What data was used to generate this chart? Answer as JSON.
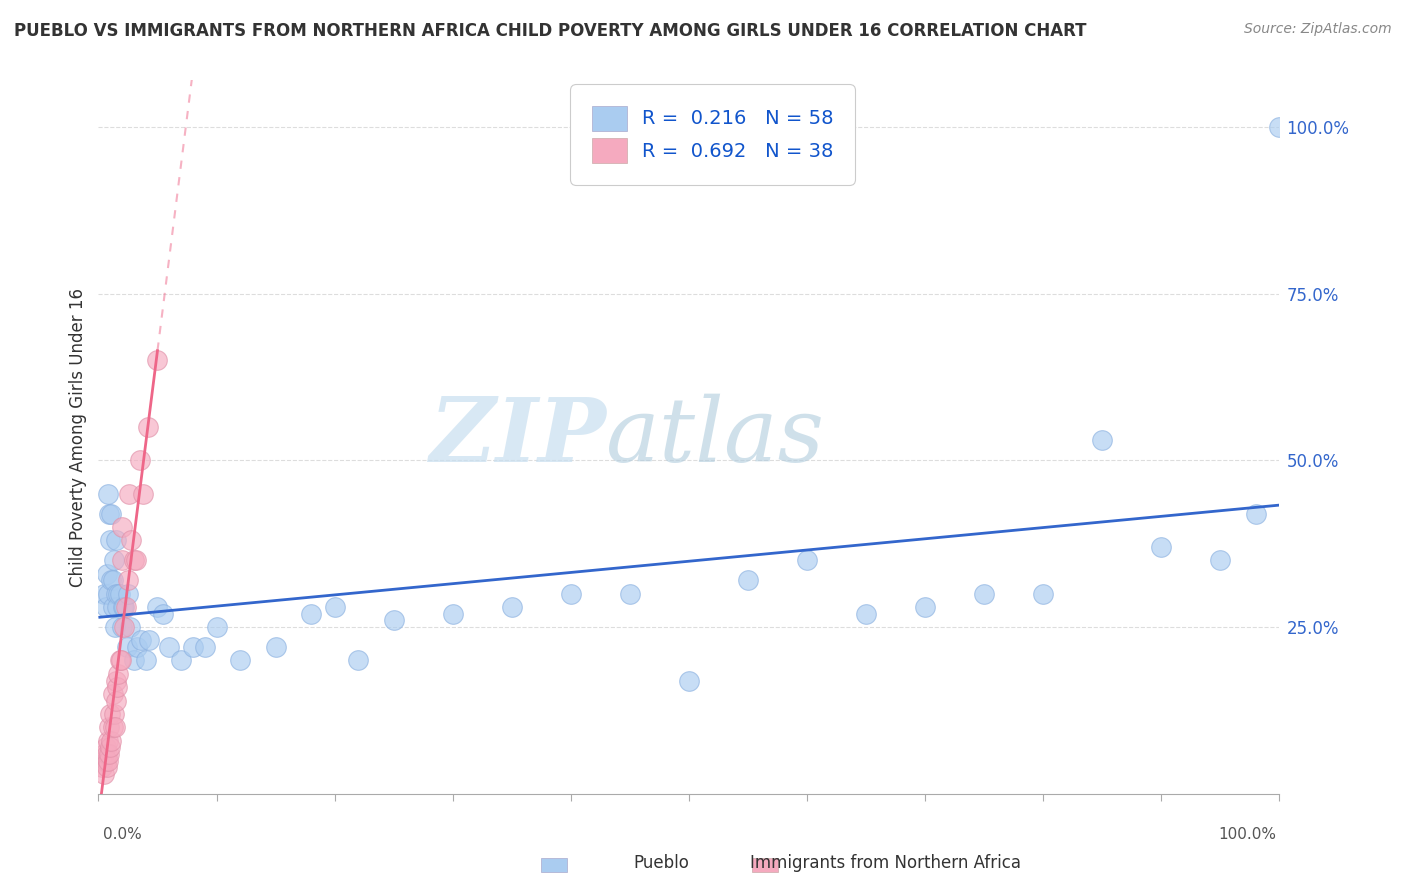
{
  "title": "PUEBLO VS IMMIGRANTS FROM NORTHERN AFRICA CHILD POVERTY AMONG GIRLS UNDER 16 CORRELATION CHART",
  "source": "Source: ZipAtlas.com",
  "ylabel": "Child Poverty Among Girls Under 16",
  "pueblo_r": "0.216",
  "pueblo_n": "58",
  "immig_r": "0.692",
  "immig_n": "38",
  "pueblo_color": "#aaccf0",
  "immig_color": "#f5aabf",
  "trend_pueblo_color": "#3366cc",
  "trend_immig_color": "#ee6688",
  "watermark_zip": "#c8dff0",
  "watermark_atlas": "#b0cce0",
  "bg": "#ffffff",
  "pueblo_points_x": [
    0.005,
    0.006,
    0.007,
    0.008,
    0.008,
    0.009,
    0.01,
    0.011,
    0.011,
    0.012,
    0.012,
    0.013,
    0.014,
    0.015,
    0.015,
    0.016,
    0.017,
    0.018,
    0.02,
    0.021,
    0.022,
    0.024,
    0.025,
    0.027,
    0.03,
    0.033,
    0.036,
    0.04,
    0.043,
    0.05,
    0.055,
    0.06,
    0.07,
    0.08,
    0.09,
    0.1,
    0.12,
    0.15,
    0.18,
    0.2,
    0.22,
    0.25,
    0.3,
    0.35,
    0.4,
    0.45,
    0.5,
    0.55,
    0.6,
    0.65,
    0.7,
    0.75,
    0.8,
    0.85,
    0.9,
    0.95,
    0.98,
    1.0
  ],
  "pueblo_points_y": [
    0.3,
    0.28,
    0.33,
    0.3,
    0.45,
    0.42,
    0.38,
    0.32,
    0.42,
    0.28,
    0.32,
    0.35,
    0.25,
    0.3,
    0.38,
    0.28,
    0.3,
    0.3,
    0.25,
    0.28,
    0.28,
    0.22,
    0.3,
    0.25,
    0.2,
    0.22,
    0.23,
    0.2,
    0.23,
    0.28,
    0.27,
    0.22,
    0.2,
    0.22,
    0.22,
    0.25,
    0.2,
    0.22,
    0.27,
    0.28,
    0.2,
    0.26,
    0.27,
    0.28,
    0.3,
    0.3,
    0.17,
    0.32,
    0.35,
    0.27,
    0.28,
    0.3,
    0.3,
    0.53,
    0.37,
    0.35,
    0.42,
    1.0
  ],
  "immig_points_x": [
    0.003,
    0.004,
    0.005,
    0.005,
    0.006,
    0.006,
    0.007,
    0.007,
    0.008,
    0.008,
    0.009,
    0.009,
    0.01,
    0.01,
    0.011,
    0.012,
    0.012,
    0.013,
    0.014,
    0.015,
    0.015,
    0.016,
    0.017,
    0.018,
    0.019,
    0.02,
    0.02,
    0.022,
    0.023,
    0.025,
    0.026,
    0.028,
    0.03,
    0.032,
    0.035,
    0.038,
    0.042,
    0.05
  ],
  "immig_points_y": [
    0.04,
    0.05,
    0.03,
    0.06,
    0.05,
    0.07,
    0.04,
    0.06,
    0.05,
    0.08,
    0.06,
    0.1,
    0.07,
    0.12,
    0.08,
    0.1,
    0.15,
    0.12,
    0.1,
    0.14,
    0.17,
    0.16,
    0.18,
    0.2,
    0.2,
    0.35,
    0.4,
    0.25,
    0.28,
    0.32,
    0.45,
    0.38,
    0.35,
    0.35,
    0.5,
    0.45,
    0.55,
    0.65
  ],
  "xlim": [
    0.0,
    1.0
  ],
  "ylim": [
    0.0,
    1.07
  ],
  "xticks": [
    0.0,
    0.1,
    0.2,
    0.3,
    0.4,
    0.5,
    0.6,
    0.7,
    0.8,
    0.9,
    1.0
  ],
  "yticks_right": [
    0.25,
    0.5,
    0.75,
    1.0
  ],
  "ytick_labels": [
    "25.0%",
    "50.0%",
    "75.0%",
    "100.0%"
  ]
}
